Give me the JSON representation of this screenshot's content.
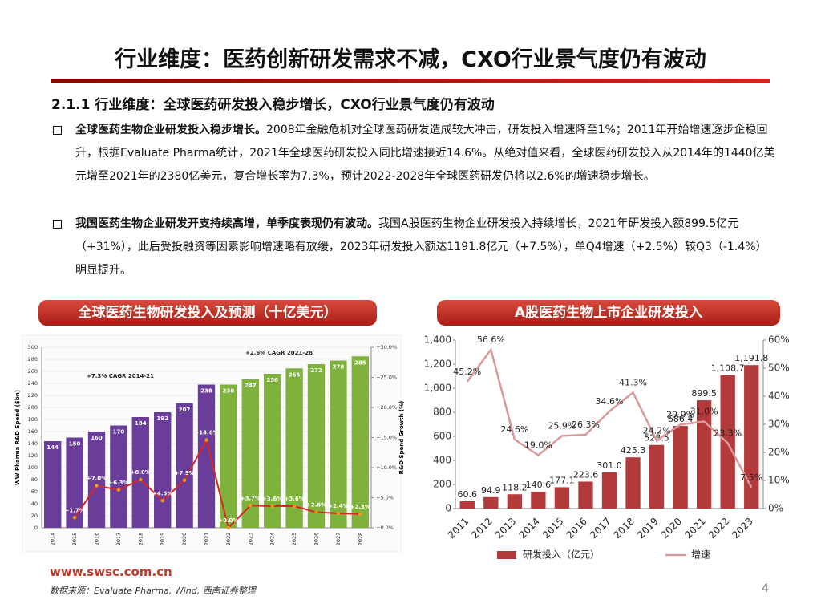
{
  "header": {
    "title": "行业维度：医药创新研发需求不减，CXO行业景气度仍有波动"
  },
  "section": "2.1.1 行业维度：全球医药研发投入稳步增长，CXO行业景气度仍有波动",
  "bullets": [
    {
      "lead": "全球医药生物企业研发投入稳步增长。",
      "text": "2008年金融危机对全球医药研发造成较大冲击，研发投入增速降至1%；2011年开始增速逐步企稳回升，根据Evaluate Pharma统计，2021年全球医药研发投入同比增速接近14.6%。从绝对值来看，全球医药研发投入从2014年的1440亿美元增至2021年的2380亿美元，复合增长率为7.3%，预计2022-2028年全球医药研发仍将以2.6%的增速稳步增长。"
    },
    {
      "lead": "我国医药生物企业研发开支持续高增，单季度表现仍有波动。",
      "text": "我国A股医药生物企业研发投入持续增长，2021年研发投入额899.5亿元（+31%），此后受投融资等因素影响增速略有放缓，2023年研发投入额达1191.8亿元（+7.5%），单Q4增速（+2.5%）较Q3（-1.4%）明显提升。"
    }
  ],
  "chart_data": [
    {
      "type": "bar",
      "title": "全球医药生物研发投入及预测（十亿美元）",
      "y_label": "WW Pharma R&D Spend ($bn)",
      "y2_label": "R&D Spend Growth (%)",
      "annotations": [
        "+7.3% CAGR 2014-21",
        "+2.6% CAGR 2021-28"
      ],
      "categories": [
        "2014",
        "2015",
        "2016",
        "2017",
        "2018",
        "2019",
        "2020",
        "2021",
        "2022",
        "2023",
        "2024",
        "2025",
        "2026",
        "2027",
        "2028"
      ],
      "series": [
        {
          "name": "WW Pharma R&D Spend",
          "type": "bar",
          "color": "#6a3d9a",
          "colors": [
            "#6a3d9a",
            "#6a3d9a",
            "#6a3d9a",
            "#6a3d9a",
            "#6a3d9a",
            "#6a3d9a",
            "#6a3d9a",
            "#6a3d9a",
            "#7fb13d",
            "#7fb13d",
            "#7fb13d",
            "#7fb13d",
            "#7fb13d",
            "#7fb13d",
            "#7fb13d"
          ],
          "values": [
            144,
            150,
            160,
            170,
            184,
            192,
            207,
            238,
            238,
            247,
            256,
            265,
            272,
            278,
            285
          ]
        },
        {
          "name": "R&D Spend Growth",
          "type": "line",
          "axis": "y2",
          "color": "#d62728",
          "values": [
            null,
            1.7,
            7.0,
            6.3,
            8.0,
            4.5,
            7.9,
            14.6,
            0.0,
            3.7,
            3.6,
            3.6,
            2.6,
            2.4,
            2.3
          ],
          "value_labels": [
            null,
            "+1.7%",
            "+7.0%",
            "+6.3%",
            "+8.0%",
            "+4.5%",
            "+7.9%",
            "+14.6%",
            "+0.0%",
            "+3.7%",
            "+3.6%",
            "+3.6%",
            "+2.6%",
            "+2.4%",
            "+2.3%"
          ]
        }
      ],
      "ylim": [
        0,
        300
      ],
      "yticks": [
        0,
        20,
        40,
        60,
        80,
        100,
        120,
        140,
        160,
        180,
        200,
        220,
        240,
        260,
        280,
        300
      ],
      "y2lim": [
        0,
        30
      ],
      "y2ticks": [
        {
          "value": 0,
          "label": "+0.0%"
        },
        {
          "value": 5,
          "label": "+5.0%"
        },
        {
          "value": 10,
          "label": "+10.0%"
        },
        {
          "value": 15,
          "label": "+15.0%"
        },
        {
          "value": 20,
          "label": "+20.0%"
        },
        {
          "value": 25,
          "label": "+25.0%"
        },
        {
          "value": 30,
          "label": "+30.0%"
        }
      ],
      "grid": true
    },
    {
      "type": "bar",
      "title": "A股医药生物上市企业研发投入",
      "categories": [
        "2011",
        "2012",
        "2013",
        "2014",
        "2015",
        "2016",
        "2017",
        "2018",
        "2019",
        "2020",
        "2021",
        "2022",
        "2023"
      ],
      "series": [
        {
          "name": "研发投入（亿元）",
          "type": "bar",
          "color": "#b23a3a",
          "values": [
            60.6,
            94.9,
            118.2,
            140.6,
            177.1,
            223.6,
            301.0,
            425.3,
            528.5,
            686.4,
            899.5,
            1108.7,
            1191.8
          ],
          "value_labels": [
            "60.6",
            "94.9",
            "118.2",
            "140.6",
            "177.1",
            "223.6",
            "301.0",
            "425.3",
            "528.5",
            "686.4",
            "899.5",
            "1,108.7",
            "1,191.8"
          ]
        },
        {
          "name": "增速",
          "type": "line",
          "axis": "y2",
          "color": "#d9999b",
          "values": [
            45.2,
            56.6,
            24.6,
            19.0,
            25.9,
            26.3,
            34.6,
            41.3,
            24.2,
            29.9,
            31.0,
            23.3,
            7.5
          ],
          "value_labels": [
            "45.2%",
            "56.6%",
            "24.6%",
            "19.0%",
            "25.9%",
            "26.3%",
            "34.6%",
            "41.3%",
            "24.2%",
            "29.9%",
            "31.0%",
            "23.3%",
            "7.5%"
          ]
        }
      ],
      "ylim": [
        0,
        1400
      ],
      "yticks": [
        0,
        200,
        400,
        600,
        800,
        {
          "value": 1000,
          "label": "1,000"
        },
        {
          "value": 1200,
          "label": "1,200"
        },
        {
          "value": 1400,
          "label": "1,400"
        }
      ],
      "y2lim": [
        0,
        60
      ],
      "y2ticks": [
        {
          "value": 0,
          "label": "0%"
        },
        {
          "value": 10,
          "label": "10%"
        },
        {
          "value": 20,
          "label": "20%"
        },
        {
          "value": 30,
          "label": "30%"
        },
        {
          "value": 40,
          "label": "40%"
        },
        {
          "value": 50,
          "label": "50%"
        },
        {
          "value": 60,
          "label": "60%"
        }
      ],
      "grid": false,
      "legend": "bottom"
    }
  ],
  "footer": {
    "url": "www.swsc.com.cn",
    "source": "数据来源：Evaluate Pharma, Wind, 西南证券整理",
    "page": "4"
  }
}
